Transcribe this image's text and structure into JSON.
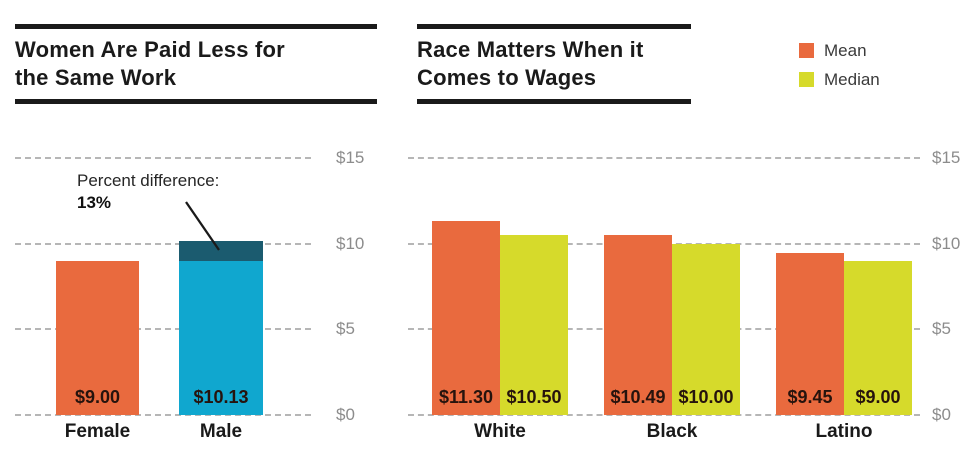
{
  "chart_data": [
    {
      "type": "bar",
      "title": "Women Are Paid Less for the Same Work",
      "title_lines": [
        "Women Are Paid Less for",
        "the Same Work"
      ],
      "categories": [
        "Female",
        "Male"
      ],
      "values": [
        9.0,
        10.13
      ],
      "value_labels": [
        "$9.00",
        "$10.13"
      ],
      "bar_colors": [
        "#E96A3E",
        "#10A7CF"
      ],
      "highlight": {
        "annotation_line1": "Percent difference:",
        "annotation_line2": "13%",
        "cap_from": 9.0,
        "cap_to": 10.13,
        "cap_color": "#1B5B6F"
      },
      "y_ticks": [
        {
          "value": 15,
          "label": "$15"
        },
        {
          "value": 10,
          "label": "$10"
        },
        {
          "value": 5,
          "label": "$5"
        },
        {
          "value": 0,
          "label": "$0"
        }
      ],
      "ylim": [
        0,
        15
      ],
      "grid": "horizontal-dashed"
    },
    {
      "type": "grouped-bar",
      "title": "Race Matters When it Comes to Wages",
      "title_lines": [
        "Race Matters When it",
        "Comes to Wages"
      ],
      "categories": [
        "White",
        "Black",
        "Latino"
      ],
      "series": [
        {
          "name": "Mean",
          "color": "#E96A3E",
          "values": [
            11.3,
            10.49,
            9.45
          ],
          "value_labels": [
            "$11.30",
            "$10.49",
            "$9.45"
          ]
        },
        {
          "name": "Median",
          "color": "#D6DA2B",
          "values": [
            10.5,
            10.0,
            9.0
          ],
          "value_labels": [
            "$10.50",
            "$10.00",
            "$9.00"
          ]
        }
      ],
      "y_ticks": [
        {
          "value": 15,
          "label": "$15"
        },
        {
          "value": 10,
          "label": "$10"
        },
        {
          "value": 5,
          "label": "$5"
        },
        {
          "value": 0,
          "label": "$0"
        }
      ],
      "ylim": [
        0,
        15
      ],
      "grid": "horizontal-dashed"
    }
  ],
  "legend": {
    "items": [
      {
        "label": "Mean",
        "color": "#E96A3E"
      },
      {
        "label": "Median",
        "color": "#D6DA2B"
      }
    ]
  }
}
